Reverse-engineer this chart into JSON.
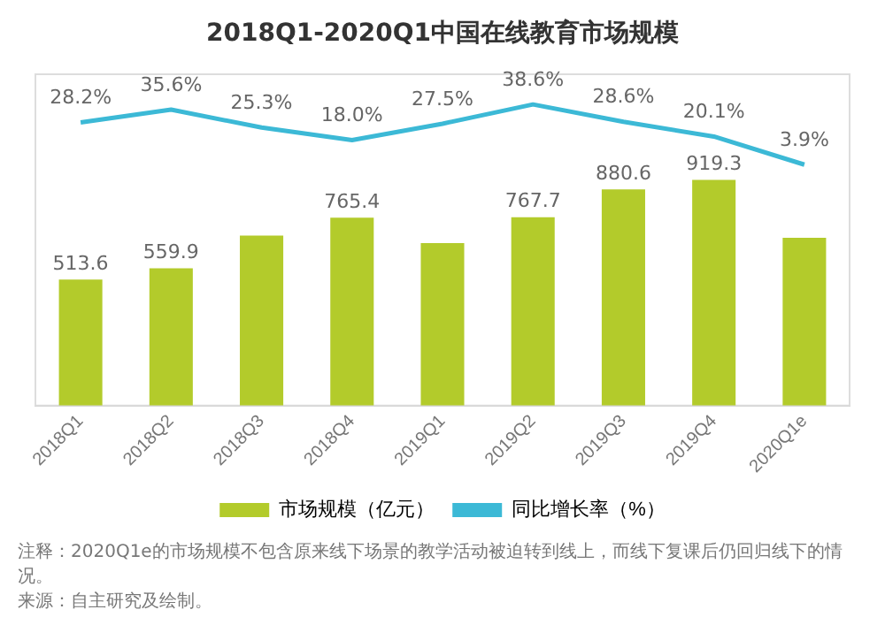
{
  "chart_data": {
    "type": "bar",
    "title": "2018Q1-2020Q1中国在线教育市场规模",
    "categories": [
      "2018Q1",
      "2018Q2",
      "2018Q3",
      "2018Q4",
      "2019Q1",
      "2019Q2",
      "2019Q3",
      "2019Q4",
      "2020Q1e"
    ],
    "series": [
      {
        "name": "市场规模（亿元）",
        "color": "#b3cb2b",
        "values": [
          513.6,
          559.9,
          693,
          765.4,
          662,
          767.7,
          880.6,
          919.3,
          684
        ],
        "value_labels": [
          "513.6",
          "559.9",
          null,
          "765.4",
          null,
          "767.7",
          "880.6",
          "919.3",
          null
        ]
      },
      {
        "name": "同比增长率（%）",
        "type": "line",
        "axis": "y2",
        "color": "#3cb9d6",
        "values": [
          28.2,
          35.6,
          25.3,
          18.0,
          27.5,
          38.6,
          28.6,
          20.1,
          3.9
        ],
        "value_labels": [
          "28.2%",
          "35.6%",
          "25.3%",
          "18.0%",
          "27.5%",
          "38.6%",
          "28.6%",
          "20.1%",
          "3.9%"
        ]
      }
    ],
    "ylim": [
      0,
      1350
    ],
    "y2lim": [
      -135,
      56
    ],
    "legend": "bottom",
    "marker": "none",
    "annotations": [
      "注释：2020Q1e的市场规模不包含原来线下场景的教学活动被迫转到线上，而线下复课后仍回归线下的情况。",
      "来源：自主研究及绘制。"
    ]
  }
}
